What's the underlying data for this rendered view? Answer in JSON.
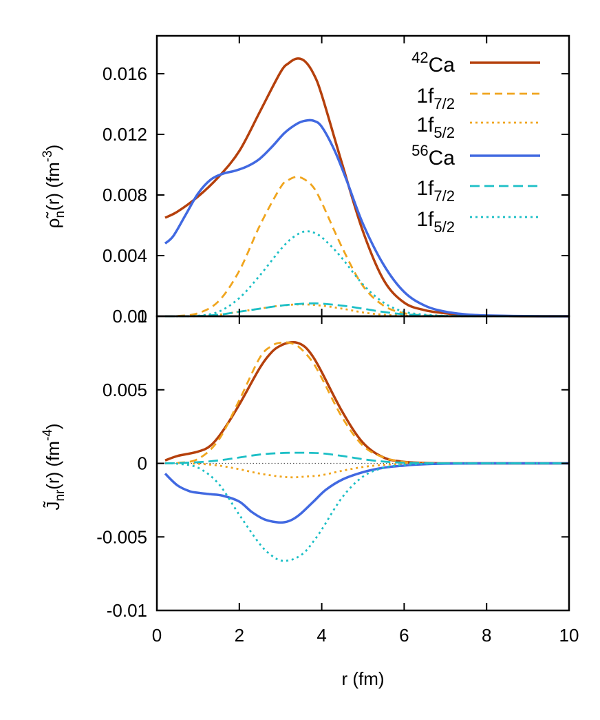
{
  "chart_data": [
    {
      "type": "line",
      "panel": "top",
      "ylabel": {
        "main": "ρ̃",
        "sub": "n",
        "mid": "(r) (fm",
        "sup": "-3",
        "end": ")"
      },
      "ylim": [
        0,
        0.0185
      ],
      "xlim": [
        0,
        10
      ],
      "yticks": [
        0,
        0.004,
        0.008,
        0.012,
        0.016
      ],
      "ytick_labels": [
        "0",
        "0.004",
        "0.008",
        "0.012",
        "0.016"
      ],
      "legend_position": "top-right",
      "zero_line": true,
      "series": [
        {
          "legend": {
            "sup": "42",
            "base": "Ca",
            "sub": ""
          },
          "color": "#b5400c",
          "dash": "solid",
          "width": 3.5,
          "x": [
            0.2,
            0.5,
            1.0,
            1.5,
            2.0,
            2.5,
            3.0,
            3.2,
            3.4,
            3.6,
            3.8,
            4.0,
            4.5,
            5.0,
            5.5,
            6.0,
            6.5,
            7.0,
            7.5,
            8.0,
            9.0,
            10.0
          ],
          "y": [
            0.0065,
            0.0069,
            0.0079,
            0.0092,
            0.0109,
            0.0135,
            0.0161,
            0.0167,
            0.017,
            0.0168,
            0.016,
            0.0146,
            0.01,
            0.0056,
            0.0024,
            0.0009,
            0.0004,
            0.0002,
            8e-05,
            3e-05,
            0.0,
            0.0
          ]
        },
        {
          "legend": {
            "sup": "",
            "base": "1f",
            "sub": "7/2"
          },
          "color": "#f0a51e",
          "dash": "11,7",
          "width": 2.8,
          "x": [
            0.2,
            0.5,
            1.0,
            1.5,
            2.0,
            2.5,
            3.0,
            3.2,
            3.4,
            3.6,
            3.8,
            4.0,
            4.5,
            5.0,
            5.5,
            6.0,
            6.5,
            7.0,
            7.5,
            8.0,
            9.0,
            10.0
          ],
          "y": [
            0.0,
            2e-05,
            0.0002,
            0.001,
            0.003,
            0.006,
            0.0085,
            0.009,
            0.0092,
            0.009,
            0.0085,
            0.0075,
            0.0045,
            0.002,
            0.0007,
            0.0002,
            6e-05,
            2e-05,
            0.0,
            0.0,
            0.0,
            0.0
          ]
        },
        {
          "legend": {
            "sup": "",
            "base": "1f",
            "sub": "5/2"
          },
          "color": "#f0a51e",
          "dash": "3,5",
          "width": 2.8,
          "x": [
            0.2,
            0.5,
            1.0,
            1.5,
            2.0,
            2.5,
            3.0,
            3.5,
            4.0,
            4.5,
            5.0,
            5.5,
            6.0,
            6.5,
            7.0,
            8.0,
            9.0,
            10.0
          ],
          "y": [
            0.0,
            0.0,
            2e-05,
            0.0001,
            0.0003,
            0.0005,
            0.0007,
            0.00078,
            0.0007,
            0.0005,
            0.00025,
            0.0001,
            3e-05,
            1e-05,
            0.0,
            0.0,
            0.0,
            0.0
          ]
        },
        {
          "legend": {
            "sup": "56",
            "base": "Ca",
            "sub": ""
          },
          "color": "#4169e1",
          "dash": "solid",
          "width": 3.5,
          "x": [
            0.2,
            0.4,
            0.7,
            1.0,
            1.3,
            1.6,
            1.9,
            2.2,
            2.5,
            2.8,
            3.1,
            3.4,
            3.6,
            3.8,
            4.0,
            4.3,
            4.6,
            5.0,
            5.5,
            6.0,
            6.5,
            7.0,
            7.5,
            8.0,
            9.0,
            10.0
          ],
          "y": [
            0.0048,
            0.0053,
            0.0067,
            0.0081,
            0.009,
            0.0094,
            0.0096,
            0.0099,
            0.0104,
            0.0112,
            0.0121,
            0.0127,
            0.0129,
            0.0129,
            0.0125,
            0.011,
            0.009,
            0.0061,
            0.0034,
            0.0016,
            0.0007,
            0.0003,
            0.00012,
            5e-05,
            1e-05,
            0.0
          ]
        },
        {
          "legend": {
            "sup": "",
            "base": "1f",
            "sub": "7/2"
          },
          "color": "#1cbfc6",
          "dash": "14,7",
          "width": 2.8,
          "x": [
            0.2,
            0.5,
            1.0,
            1.5,
            2.0,
            2.5,
            3.0,
            3.5,
            3.8,
            4.0,
            4.5,
            5.0,
            5.5,
            6.0,
            6.5,
            7.0,
            8.0,
            9.0,
            10.0
          ],
          "y": [
            0.0,
            0.0,
            2e-05,
            0.0001,
            0.0003,
            0.0005,
            0.0007,
            0.00082,
            0.00085,
            0.00083,
            0.0007,
            0.0005,
            0.00028,
            0.00013,
            5e-05,
            2e-05,
            0.0,
            0.0,
            0.0
          ]
        },
        {
          "legend": {
            "sup": "",
            "base": "1f",
            "sub": "5/2"
          },
          "color": "#1cbfc6",
          "dash": "3,5",
          "width": 2.8,
          "x": [
            0.2,
            0.5,
            1.0,
            1.5,
            2.0,
            2.5,
            3.0,
            3.3,
            3.6,
            3.9,
            4.2,
            4.5,
            5.0,
            5.5,
            6.0,
            6.5,
            7.0,
            7.5,
            8.0,
            9.0,
            10.0
          ],
          "y": [
            0.0,
            0.0,
            3e-05,
            0.0003,
            0.0012,
            0.0027,
            0.0044,
            0.0052,
            0.0056,
            0.0054,
            0.0047,
            0.0038,
            0.0021,
            0.0009,
            0.0003,
            0.0001,
            3e-05,
            1e-05,
            0.0,
            0.0,
            0.0
          ]
        }
      ]
    },
    {
      "type": "line",
      "panel": "bottom",
      "xlabel": "r (fm)",
      "ylabel": {
        "main": "J̃",
        "sub": "nr",
        "mid": "(r) (fm",
        "sup": "-4",
        "end": ")"
      },
      "ylim": [
        -0.01,
        0.01
      ],
      "xlim": [
        0,
        10
      ],
      "yticks": [
        -0.01,
        -0.005,
        0,
        0.005,
        0.01
      ],
      "ytick_labels": [
        "-0.01",
        "-0.005",
        "0",
        "0.005",
        "0.01"
      ],
      "xticks": [
        0,
        2,
        4,
        6,
        8,
        10
      ],
      "xtick_labels": [
        "0",
        "2",
        "4",
        "6",
        "8",
        "10"
      ],
      "zero_line": true,
      "series": [
        {
          "color": "#b5400c",
          "dash": "solid",
          "width": 3.5,
          "x": [
            0.2,
            0.5,
            1.0,
            1.3,
            1.6,
            2.0,
            2.5,
            2.8,
            3.0,
            3.2,
            3.4,
            3.6,
            3.8,
            4.0,
            4.5,
            5.0,
            5.5,
            6.0,
            6.5,
            7.0,
            8.0,
            10.0
          ],
          "y": [
            0.0002,
            0.0005,
            0.0008,
            0.0012,
            0.0022,
            0.004,
            0.0065,
            0.0076,
            0.008,
            0.0082,
            0.0082,
            0.0079,
            0.0072,
            0.0062,
            0.0035,
            0.0014,
            0.0004,
            0.0001,
            3e-05,
            0.0,
            0.0,
            0.0
          ]
        },
        {
          "color": "#f0a51e",
          "dash": "11,7",
          "width": 2.8,
          "x": [
            0.2,
            0.5,
            1.0,
            1.5,
            2.0,
            2.5,
            2.8,
            3.0,
            3.2,
            3.4,
            3.6,
            3.8,
            4.0,
            4.5,
            5.0,
            5.5,
            6.0,
            6.5,
            7.0,
            8.0,
            10.0
          ],
          "y": [
            0.0,
            3e-05,
            0.0003,
            0.0016,
            0.0043,
            0.0072,
            0.008,
            0.0082,
            0.0082,
            0.008,
            0.0075,
            0.0068,
            0.0058,
            0.0031,
            0.0012,
            0.0004,
            0.0001,
            2e-05,
            0.0,
            0.0,
            0.0
          ]
        },
        {
          "color": "#f0a51e",
          "dash": "3,5",
          "width": 2.8,
          "x": [
            0.2,
            0.5,
            1.0,
            1.5,
            2.0,
            2.5,
            3.0,
            3.3,
            3.6,
            4.0,
            4.5,
            5.0,
            5.5,
            6.0,
            6.5,
            7.0,
            8.0,
            10.0
          ],
          "y": [
            0.0,
            0.0,
            -3e-05,
            -0.00015,
            -0.0004,
            -0.0007,
            -0.0009,
            -0.00095,
            -0.0009,
            -0.0008,
            -0.0005,
            -0.00025,
            -0.0001,
            -3e-05,
            0.0,
            0.0,
            0.0,
            0.0
          ]
        },
        {
          "color": "#4169e1",
          "dash": "solid",
          "width": 3.5,
          "x": [
            0.2,
            0.5,
            0.8,
            1.0,
            1.3,
            1.6,
            2.0,
            2.3,
            2.6,
            2.9,
            3.1,
            3.3,
            3.5,
            3.8,
            4.1,
            4.5,
            5.0,
            5.5,
            6.0,
            6.5,
            7.0,
            8.0,
            10.0
          ],
          "y": [
            -0.0007,
            -0.0015,
            -0.0019,
            -0.002,
            -0.0021,
            -0.0022,
            -0.0026,
            -0.0033,
            -0.0038,
            -0.004,
            -0.004,
            -0.0038,
            -0.0034,
            -0.0026,
            -0.0018,
            -0.0011,
            -0.0006,
            -0.0003,
            -0.00015,
            -6e-05,
            -2e-05,
            0.0,
            0.0
          ]
        },
        {
          "color": "#1cbfc6",
          "dash": "14,7",
          "width": 2.8,
          "x": [
            0.2,
            0.5,
            1.0,
            1.5,
            2.0,
            2.5,
            3.0,
            3.5,
            4.0,
            4.5,
            5.0,
            5.5,
            6.0,
            6.5,
            7.0,
            8.0,
            10.0
          ],
          "y": [
            0.0,
            2e-05,
            8e-05,
            0.0002,
            0.0004,
            0.0006,
            0.0007,
            0.00072,
            0.00068,
            0.0005,
            0.00028,
            0.00012,
            4e-05,
            1e-05,
            0.0,
            0.0,
            0.0
          ]
        },
        {
          "color": "#1cbfc6",
          "dash": "3,5",
          "width": 2.8,
          "x": [
            0.2,
            0.5,
            1.0,
            1.5,
            2.0,
            2.5,
            2.8,
            3.0,
            3.2,
            3.4,
            3.6,
            3.8,
            4.0,
            4.5,
            5.0,
            5.5,
            6.0,
            6.5,
            7.0,
            8.0,
            10.0
          ],
          "y": [
            0.0,
            -3e-05,
            -0.0003,
            -0.0014,
            -0.0035,
            -0.0055,
            -0.0063,
            -0.0066,
            -0.0066,
            -0.0064,
            -0.006,
            -0.0053,
            -0.0045,
            -0.0023,
            -0.0009,
            -0.0003,
            -0.0001,
            -3e-05,
            0.0,
            0.0,
            0.0
          ]
        }
      ]
    }
  ]
}
